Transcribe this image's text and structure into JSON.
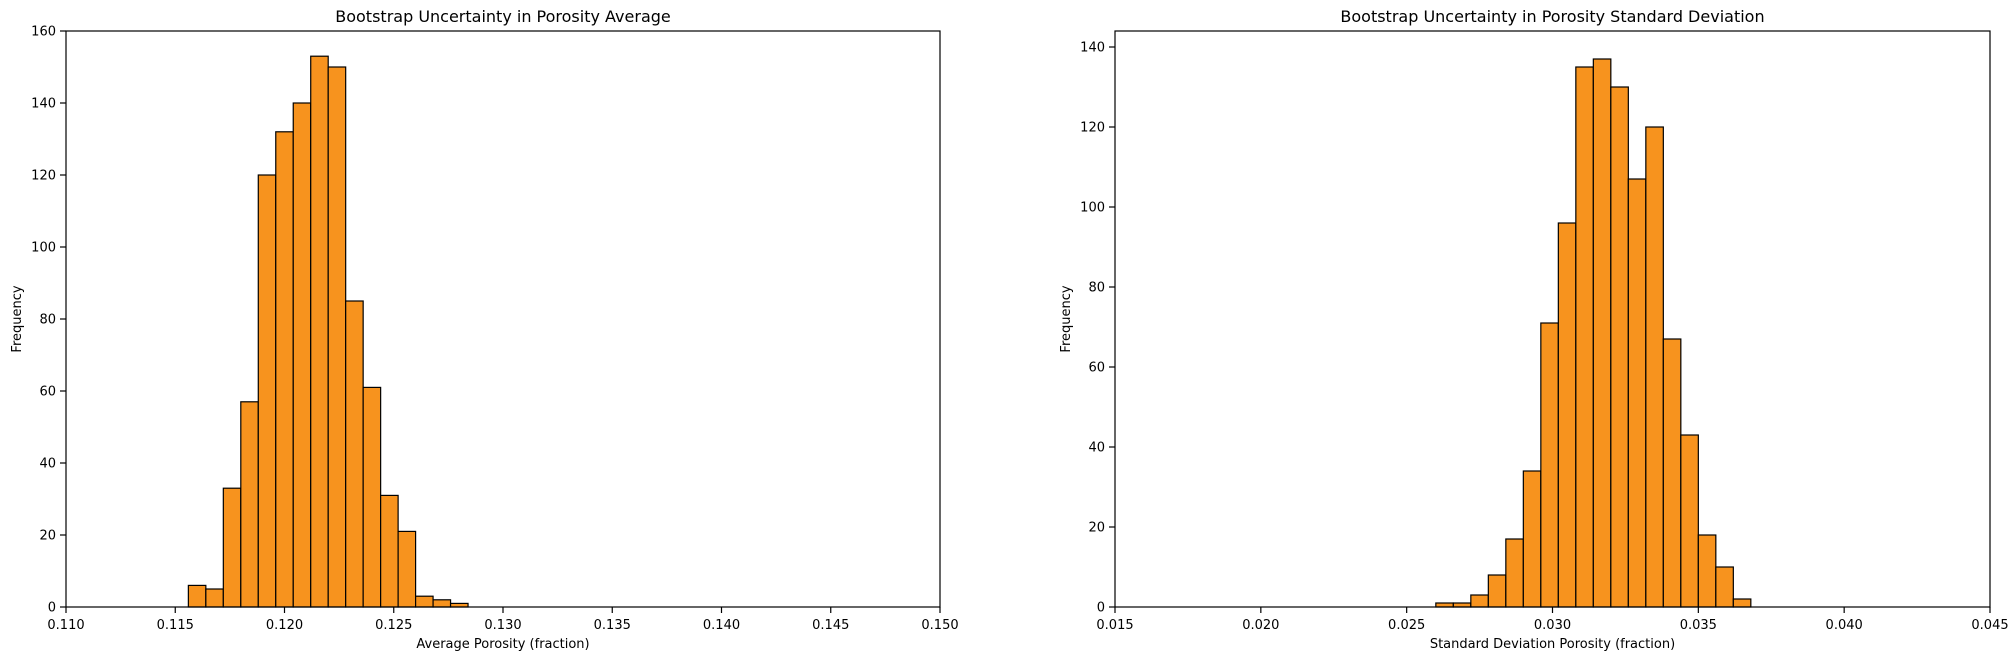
{
  "chart_data": [
    {
      "type": "bar",
      "title": "Bootstrap Uncertainty in Porosity Average",
      "xlabel": "Average Porosity (fraction)",
      "ylabel": "Frequency",
      "xlim": [
        0.11,
        0.15
      ],
      "ylim": [
        0,
        160
      ],
      "xticks": [
        "0.110",
        "0.115",
        "0.120",
        "0.125",
        "0.130",
        "0.135",
        "0.140",
        "0.145",
        "0.150"
      ],
      "yticks": [
        "0",
        "20",
        "40",
        "60",
        "80",
        "100",
        "120",
        "140",
        "160"
      ],
      "grid": false,
      "bin_edges": [
        0.1156,
        0.1164,
        0.1172,
        0.118,
        0.1188,
        0.1196,
        0.1204,
        0.1212,
        0.122,
        0.1228,
        0.1236,
        0.1244,
        0.1252,
        0.126,
        0.1268,
        0.1276,
        0.1284
      ],
      "values": [
        6,
        5,
        33,
        57,
        120,
        132,
        140,
        153,
        150,
        85,
        61,
        31,
        21,
        3,
        2,
        1
      ]
    },
    {
      "type": "bar",
      "title": "Bootstrap Uncertainty in Porosity Standard Deviation",
      "xlabel": "Standard Deviation Porosity (fraction)",
      "ylabel": "Frequency",
      "xlim": [
        0.015,
        0.045
      ],
      "ylim": [
        0,
        144
      ],
      "xticks": [
        "0.015",
        "0.020",
        "0.025",
        "0.030",
        "0.035",
        "0.040",
        "0.045"
      ],
      "yticks": [
        "0",
        "20",
        "40",
        "60",
        "80",
        "100",
        "120",
        "140"
      ],
      "grid": false,
      "bin_edges": [
        0.026,
        0.0266,
        0.0272,
        0.0278,
        0.0284,
        0.029,
        0.0296,
        0.0302,
        0.0308,
        0.0314,
        0.032,
        0.0326,
        0.0332,
        0.0338,
        0.0344,
        0.035,
        0.0356,
        0.0362,
        0.0368
      ],
      "values": [
        1,
        1,
        3,
        8,
        17,
        34,
        71,
        96,
        135,
        137,
        130,
        107,
        120,
        67,
        43,
        18,
        10,
        2
      ]
    }
  ],
  "style": {
    "bar_fill": "#f7931e",
    "bar_edge": "#000000"
  }
}
